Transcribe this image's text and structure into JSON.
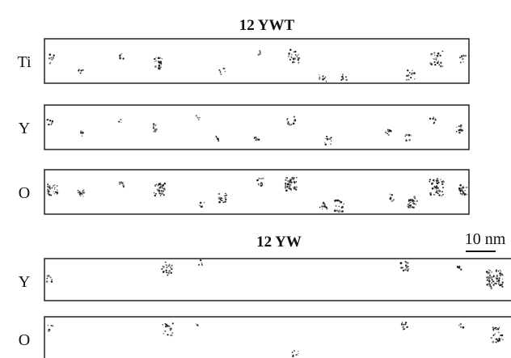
{
  "figure": {
    "groups": [
      {
        "title": "12 YWT",
        "rows": [
          "Ti",
          "Y",
          "O"
        ]
      },
      {
        "title": "12 YW",
        "rows": [
          "Y",
          "O"
        ]
      }
    ],
    "scale_bar": "10 nm"
  }
}
